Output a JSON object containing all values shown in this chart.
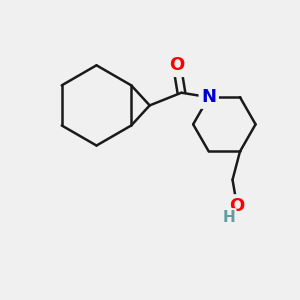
{
  "bg_color": "#f0f0f0",
  "bond_color": "#1a1a1a",
  "bond_width": 1.8,
  "atom_colors": {
    "O": "#ff0000",
    "N": "#0000cc",
    "H_O": "#5f9ea0"
  },
  "font_size_atoms": 13,
  "fig_size": [
    3.0,
    3.0
  ],
  "dpi": 100,
  "xlim": [
    0,
    10
  ],
  "ylim": [
    0,
    10
  ]
}
